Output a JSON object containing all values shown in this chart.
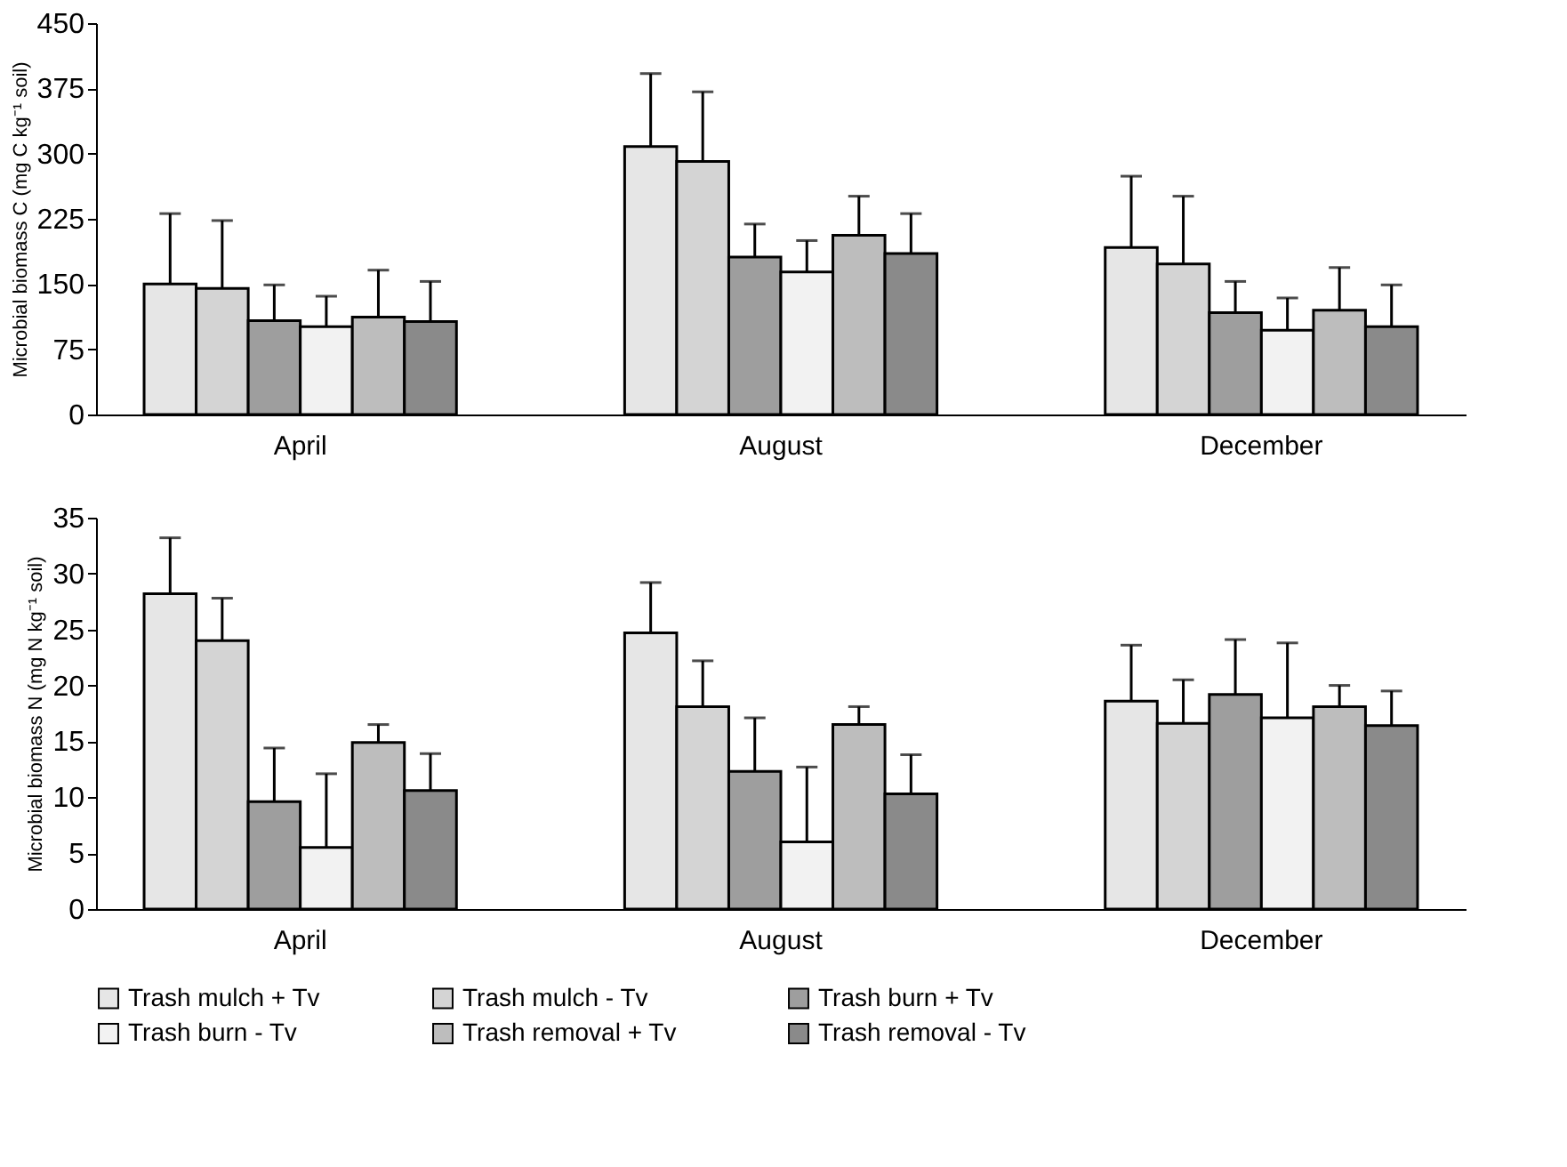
{
  "chart_data": [
    {
      "type": "bar",
      "ylabel": "Microbial biomass C (mg C kg⁻¹ soil)",
      "categories": [
        "April",
        "August",
        "December"
      ],
      "ylim": [
        0,
        450
      ],
      "yticks": [
        0,
        75,
        150,
        225,
        300,
        375,
        450
      ],
      "grid": false,
      "legend": "bottom",
      "series": [
        {
          "name": "Trash mulch + Tv",
          "color": "#e6e6e6",
          "values": [
            150,
            308,
            192
          ],
          "errors": [
            [
              150,
              231
            ],
            [
              308,
              392
            ],
            [
              192,
              274
            ]
          ]
        },
        {
          "name": "Trash mulch - Tv",
          "color": "#d4d4d4",
          "values": [
            145,
            291,
            173
          ],
          "errors": [
            [
              145,
              223
            ],
            [
              291,
              371
            ],
            [
              173,
              251
            ]
          ]
        },
        {
          "name": "Trash burn + Tv",
          "color": "#9e9e9e",
          "values": [
            108,
            181,
            117
          ],
          "errors": [
            [
              108,
              149
            ],
            [
              181,
              219
            ],
            [
              117,
              153
            ]
          ]
        },
        {
          "name": "Trash burn - Tv",
          "color": "#f2f2f2",
          "values": [
            101,
            164,
            97
          ],
          "errors": [
            [
              101,
              136
            ],
            [
              164,
              200
            ],
            [
              97,
              134
            ]
          ]
        },
        {
          "name": "Trash removal + Tv",
          "color": "#bdbdbd",
          "values": [
            112,
            206,
            120
          ],
          "errors": [
            [
              112,
              166
            ],
            [
              206,
              251
            ],
            [
              120,
              169
            ]
          ]
        },
        {
          "name": "Trash removal - Tv",
          "color": "#8a8a8a",
          "values": [
            107,
            185,
            101
          ],
          "errors": [
            [
              107,
              153
            ],
            [
              185,
              231
            ],
            [
              101,
              149
            ]
          ]
        }
      ]
    },
    {
      "type": "bar",
      "ylabel": "Microbial biomass N (mg N kg⁻¹ soil)",
      "categories": [
        "April",
        "August",
        "December"
      ],
      "ylim": [
        0,
        35
      ],
      "yticks": [
        0,
        5,
        10,
        15,
        20,
        25,
        30,
        35
      ],
      "grid": false,
      "legend": "bottom",
      "series": [
        {
          "name": "Trash mulch + Tv",
          "color": "#e6e6e6",
          "values": [
            28.2,
            24.7,
            18.6
          ],
          "errors": [
            [
              28.2,
              33.2
            ],
            [
              24.7,
              29.2
            ],
            [
              18.6,
              23.6
            ]
          ]
        },
        {
          "name": "Trash mulch - Tv",
          "color": "#d4d4d4",
          "values": [
            24.0,
            18.1,
            16.6
          ],
          "errors": [
            [
              24.0,
              27.8
            ],
            [
              18.1,
              22.2
            ],
            [
              16.6,
              20.5
            ]
          ]
        },
        {
          "name": "Trash burn + Tv",
          "color": "#9e9e9e",
          "values": [
            9.6,
            12.3,
            19.2
          ],
          "errors": [
            [
              9.6,
              14.4
            ],
            [
              12.3,
              17.1
            ],
            [
              19.2,
              24.1
            ]
          ]
        },
        {
          "name": "Trash burn - Tv",
          "color": "#f2f2f2",
          "values": [
            5.5,
            6.0,
            17.1
          ],
          "errors": [
            [
              5.5,
              12.1
            ],
            [
              6.0,
              12.7
            ],
            [
              17.1,
              23.8
            ]
          ]
        },
        {
          "name": "Trash removal + Tv",
          "color": "#bdbdbd",
          "values": [
            14.9,
            16.5,
            18.1
          ],
          "errors": [
            [
              14.9,
              16.5
            ],
            [
              16.5,
              18.1
            ],
            [
              18.1,
              20.0
            ]
          ]
        },
        {
          "name": "Trash removal - Tv",
          "color": "#8a8a8a",
          "values": [
            10.6,
            10.3,
            16.4
          ],
          "errors": [
            [
              10.6,
              13.9
            ],
            [
              10.3,
              13.8
            ],
            [
              16.4,
              19.5
            ]
          ]
        }
      ]
    }
  ]
}
